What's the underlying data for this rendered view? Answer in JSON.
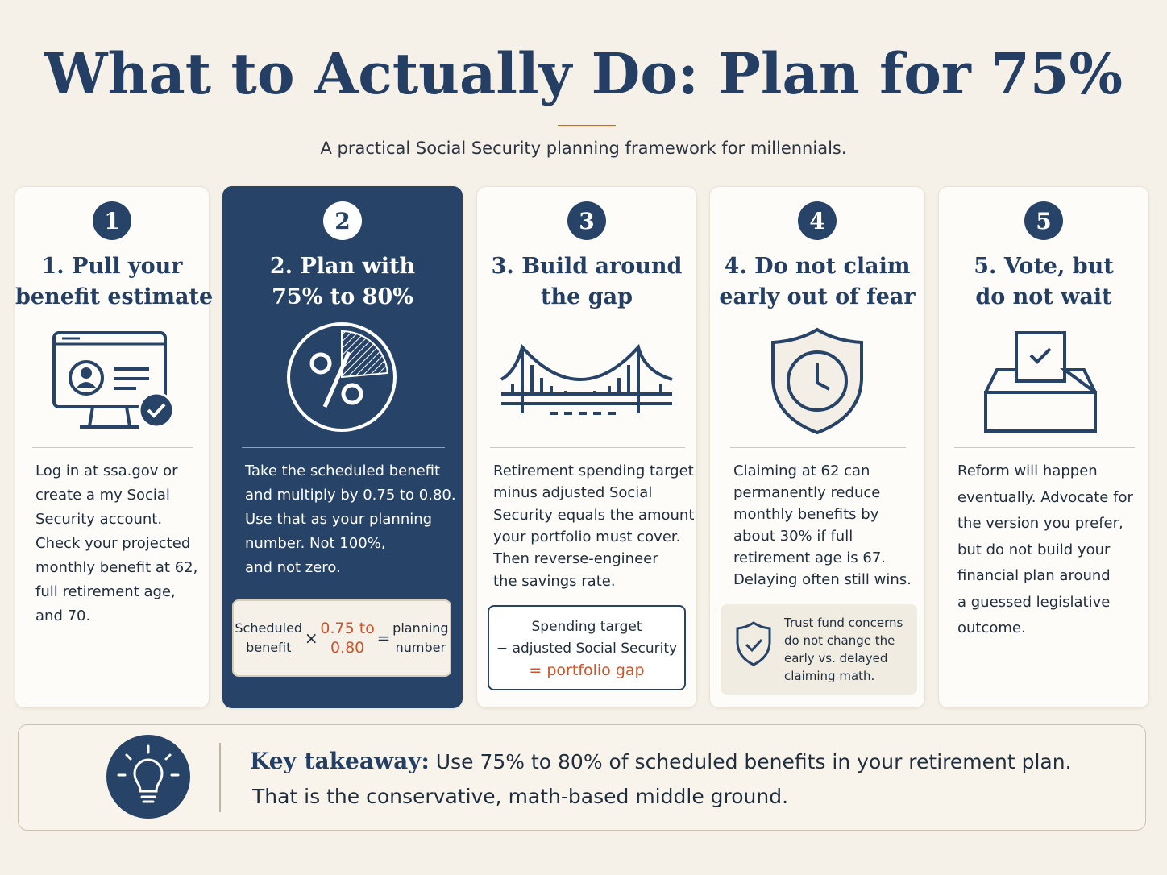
{
  "header": {
    "title": "What to Actually Do: Plan for 75%",
    "subtitle": "A practical Social Security planning framework for millennials."
  },
  "steps": [
    {
      "number": "1",
      "heading": [
        "1. Pull your",
        "benefit estimate"
      ],
      "body": [
        "Log in at ssa.gov or",
        "create a my Social",
        "Security account.",
        "Check your projected",
        "monthly benefit at 62,",
        "full retirement age,",
        "and 70."
      ]
    },
    {
      "number": "2",
      "heading": [
        "2. Plan with",
        "75% to 80%"
      ],
      "body": [
        "Take the scheduled benefit",
        "and multiply by 0.75 to 0.80.",
        "Use that as your planning",
        "number. Not 100%,",
        "and not zero."
      ],
      "box": {
        "left": [
          "Scheduled",
          "benefit"
        ],
        "op1": "×",
        "mid": [
          "0.75 to",
          "0.80"
        ],
        "op2": "=",
        "right": [
          "planning",
          "number"
        ]
      }
    },
    {
      "number": "3",
      "heading": [
        "3. Build around",
        "the gap"
      ],
      "body": [
        "Retirement spending target",
        "minus adjusted Social",
        "Security equals the amount",
        "your portfolio must cover.",
        "Then reverse-engineer",
        "the savings rate."
      ],
      "box": [
        "Spending target",
        "− adjusted Social Security",
        "= portfolio gap"
      ]
    },
    {
      "number": "4",
      "heading": [
        "4. Do not claim",
        "early out of fear"
      ],
      "body": [
        "Claiming at 62 can",
        "permanently reduce",
        "monthly benefits by",
        "about 30% if full",
        "retirement age is 67.",
        "Delaying often still wins."
      ],
      "note": [
        "Trust fund concerns",
        "do not change the",
        "early vs. delayed",
        "claiming math."
      ]
    },
    {
      "number": "5",
      "heading": [
        "5. Vote, but",
        "do not wait"
      ],
      "body": [
        "Reform will happen",
        "eventually. Advocate for",
        "the version you prefer,",
        "but do not build your",
        "financial plan around",
        "a guessed legislative",
        "outcome."
      ]
    }
  ],
  "takeaway": {
    "label": "Key takeaway:",
    "lines": [
      "Use 75% to 80% of scheduled benefits in your retirement plan.",
      "That is the conservative, math-based middle ground."
    ]
  }
}
